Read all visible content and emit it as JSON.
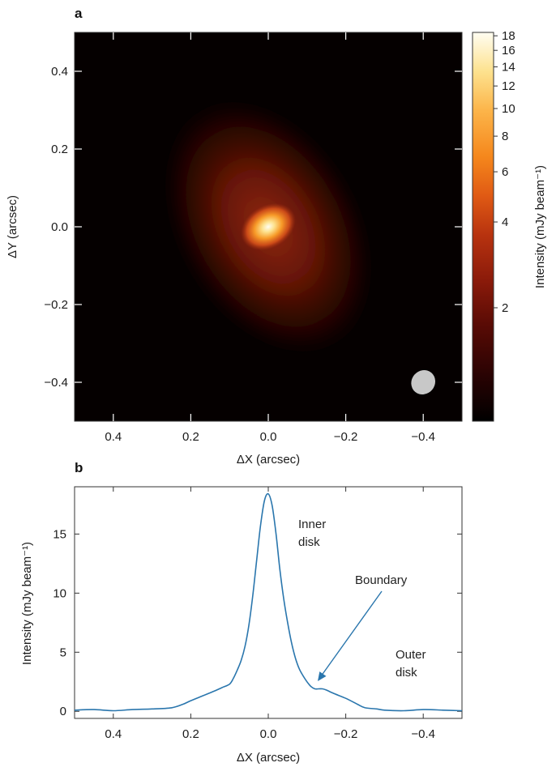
{
  "colors": {
    "curve": "#2a76ad",
    "frame": "#333333",
    "beam": "#c8c8c8",
    "colormap": [
      "#000000",
      "#2a0303",
      "#5a0b05",
      "#8a1a0a",
      "#b8330f",
      "#e05a14",
      "#f5871c",
      "#fcb54a",
      "#fde28f",
      "#fffdf2"
    ]
  },
  "chart_data": [
    {
      "type": "heatmap",
      "panel_label": "a",
      "xlabel": "ΔX (arcsec)",
      "ylabel": "ΔY (arcsec)",
      "xlim": [
        0.5,
        -0.5
      ],
      "ylim": [
        -0.5,
        0.5
      ],
      "x_ticks": [
        0.4,
        0.2,
        0.0,
        -0.2,
        -0.4
      ],
      "x_tick_labels": [
        "0.4",
        "0.2",
        "0.0",
        "−0.2",
        "−0.4"
      ],
      "y_ticks": [
        0.4,
        0.2,
        0.0,
        -0.2,
        -0.4
      ],
      "y_tick_labels": [
        "0.4",
        "0.2",
        "0.0",
        "−0.2",
        "−0.4"
      ],
      "colorbar": {
        "label": "Intensity (mJy beam⁻¹)",
        "scale": "log",
        "range": [
          0.8,
          18.5
        ],
        "ticks": [
          2,
          4,
          6,
          8,
          10,
          12,
          14,
          16,
          18
        ],
        "tick_labels": [
          "2",
          "4",
          "6",
          "8",
          "10",
          "12",
          "14",
          "16",
          "18"
        ]
      },
      "source": {
        "center": [
          0.0,
          0.0
        ],
        "peak": 18.4,
        "inner_disk": {
          "semi_major": 0.075,
          "semi_minor": 0.055,
          "position_angle_deg": -30
        },
        "outer_disk": {
          "semi_major": 0.36,
          "semi_minor": 0.24,
          "position_angle_deg": -30
        },
        "background": 0.8
      },
      "beam": {
        "x": -0.4,
        "y": -0.4,
        "major": 0.038,
        "minor": 0.03,
        "position_angle_deg": 40
      }
    },
    {
      "type": "line",
      "panel_label": "b",
      "xlabel": "ΔX (arcsec)",
      "ylabel": "Intensity (mJy beam⁻¹)",
      "xlim": [
        0.5,
        -0.5
      ],
      "ylim": [
        -0.6,
        19
      ],
      "x_ticks": [
        0.4,
        0.2,
        0.0,
        -0.2,
        -0.4
      ],
      "x_tick_labels": [
        "0.4",
        "0.2",
        "0.0",
        "−0.2",
        "−0.4"
      ],
      "y_ticks": [
        0,
        5,
        10,
        15
      ],
      "y_tick_labels": [
        "0",
        "5",
        "10",
        "15"
      ],
      "x": [
        0.5,
        0.45,
        0.4,
        0.35,
        0.3,
        0.25,
        0.22,
        0.2,
        0.17,
        0.14,
        0.12,
        0.1,
        0.09,
        0.08,
        0.07,
        0.06,
        0.05,
        0.04,
        0.03,
        0.02,
        0.01,
        0.0,
        -0.01,
        -0.02,
        -0.03,
        -0.04,
        -0.05,
        -0.06,
        -0.07,
        -0.08,
        -0.09,
        -0.1,
        -0.11,
        -0.12,
        -0.13,
        -0.14,
        -0.15,
        -0.17,
        -0.2,
        -0.23,
        -0.25,
        -0.28,
        -0.3,
        -0.35,
        -0.4,
        -0.45,
        -0.5
      ],
      "y": [
        0.1,
        0.15,
        0.05,
        0.15,
        0.2,
        0.3,
        0.6,
        0.9,
        1.3,
        1.7,
        2.0,
        2.3,
        2.8,
        3.5,
        4.3,
        5.5,
        7.3,
        9.8,
        12.8,
        15.7,
        17.8,
        18.4,
        17.4,
        15.0,
        12.0,
        9.5,
        7.5,
        5.8,
        4.5,
        3.6,
        3.0,
        2.5,
        2.1,
        1.9,
        1.9,
        1.9,
        1.8,
        1.5,
        1.1,
        0.6,
        0.3,
        0.2,
        0.1,
        0.05,
        0.15,
        0.1,
        0.05
      ]
    }
  ],
  "annotations": {
    "inner": [
      "Inner",
      "disk"
    ],
    "outer": [
      "Outer",
      "disk"
    ],
    "boundary": "Boundary"
  }
}
